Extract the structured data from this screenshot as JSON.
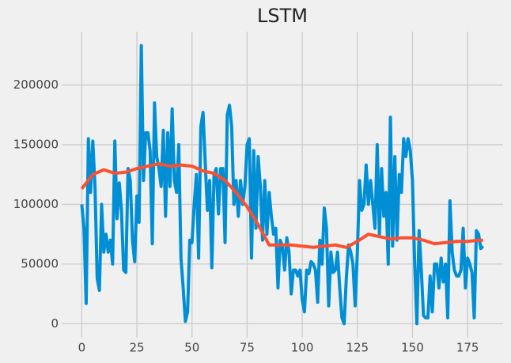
{
  "chart_data": {
    "type": "line",
    "title": "LSTM",
    "xlim": [
      -9.1,
      191.1
    ],
    "ylim": [
      -11650,
      244650
    ],
    "xticks": [
      0,
      25,
      50,
      75,
      100,
      125,
      150,
      175
    ],
    "yticks": [
      0,
      50000,
      100000,
      150000,
      200000
    ],
    "grid": true,
    "series": [
      {
        "color": "#008fd5",
        "x": [
          0,
          1,
          2,
          3,
          4,
          5,
          6,
          7,
          8,
          9,
          10,
          11,
          12,
          13,
          14,
          15,
          16,
          17,
          18,
          19,
          20,
          21,
          22,
          23,
          24,
          25,
          26,
          27,
          28,
          29,
          30,
          31,
          32,
          33,
          34,
          35,
          36,
          37,
          38,
          39,
          40,
          41,
          42,
          43,
          44,
          45,
          46,
          47,
          48,
          49,
          50,
          51,
          52,
          53,
          54,
          55,
          56,
          57,
          58,
          59,
          60,
          61,
          62,
          63,
          64,
          65,
          66,
          67,
          68,
          69,
          70,
          71,
          72,
          73,
          74,
          75,
          76,
          77,
          78,
          79,
          80,
          81,
          82,
          83,
          84,
          85,
          86,
          87,
          88,
          89,
          90,
          91,
          92,
          93,
          94,
          95,
          96,
          97,
          98,
          99,
          100,
          101,
          102,
          103,
          104,
          105,
          106,
          107,
          108,
          109,
          110,
          111,
          112,
          113,
          114,
          115,
          116,
          117,
          118,
          119,
          120,
          121,
          122,
          123,
          124,
          125,
          126,
          127,
          128,
          129,
          130,
          131,
          132,
          133,
          134,
          135,
          136,
          137,
          138,
          139,
          140,
          141,
          142,
          143,
          144,
          145,
          146,
          147,
          148,
          149,
          150,
          151,
          152,
          153,
          154,
          155,
          156,
          157,
          158,
          159,
          160,
          161,
          162,
          163,
          164,
          165,
          166,
          167,
          168,
          169,
          170,
          171,
          172,
          173,
          174,
          175,
          176,
          177,
          178,
          179,
          180,
          181,
          182
        ],
        "values": [
          100000,
          80000,
          17000,
          155000,
          110000,
          153000,
          115000,
          38000,
          28000,
          100000,
          60000,
          75000,
          60000,
          70000,
          50000,
          153000,
          88000,
          118000,
          95000,
          45000,
          43000,
          130000,
          120000,
          70000,
          52000,
          107000,
          85000,
          233000,
          120000,
          160000,
          160000,
          145000,
          67000,
          185000,
          140000,
          130000,
          115000,
          162000,
          90000,
          160000,
          115000,
          180000,
          120000,
          110000,
          150000,
          55000,
          30000,
          2000,
          10000,
          70000,
          68000,
          100000,
          125000,
          55000,
          165000,
          177000,
          135000,
          95000,
          120000,
          47000,
          125000,
          130000,
          92000,
          130000,
          130000,
          68000,
          175000,
          183000,
          165000,
          100000,
          120000,
          90000,
          120000,
          100000,
          115000,
          150000,
          155000,
          55000,
          145000,
          80000,
          140000,
          115000,
          70000,
          120000,
          75000,
          110000,
          90000,
          75000,
          80000,
          30000,
          70000,
          65000,
          45000,
          72000,
          60000,
          25000,
          45000,
          45000,
          40000,
          45000,
          20000,
          10000,
          45000,
          42000,
          52000,
          50000,
          45000,
          18000,
          70000,
          50000,
          97000,
          80000,
          15000,
          60000,
          43000,
          45000,
          60000,
          30000,
          5000,
          0,
          38000,
          66000,
          60000,
          50000,
          15000,
          60000,
          120000,
          95000,
          100000,
          133000,
          100000,
          120000,
          100000,
          80000,
          150000,
          75000,
          130000,
          90000,
          110000,
          50000,
          173000,
          65000,
          140000,
          70000,
          125000,
          110000,
          155000,
          140000,
          155000,
          145000,
          120000,
          50000,
          0,
          78000,
          45000,
          7000,
          5000,
          5000,
          40000,
          10000,
          50000,
          50000,
          30000,
          55000,
          35000,
          50000,
          5000,
          103000,
          60000,
          45000,
          40000,
          40000,
          45000,
          80000,
          30000,
          55000,
          50000,
          43000,
          5000,
          78000,
          75000,
          63000,
          65000
        ]
      },
      {
        "color": "#fc4f30",
        "x": [
          0,
          5,
          10,
          15,
          20,
          25,
          30,
          35,
          40,
          45,
          50,
          55,
          60,
          65,
          70,
          75,
          80,
          85,
          90,
          95,
          100,
          105,
          110,
          115,
          120,
          125,
          130,
          135,
          140,
          145,
          150,
          155,
          160,
          165,
          170,
          175,
          180,
          182
        ],
        "values": [
          113000,
          125000,
          129000,
          126000,
          127000,
          130000,
          132000,
          134000,
          132000,
          133000,
          132000,
          128000,
          126000,
          120000,
          110000,
          98000,
          83000,
          66000,
          66000,
          66000,
          65000,
          64000,
          65000,
          66000,
          64000,
          69000,
          75000,
          73000,
          71000,
          72000,
          72000,
          70000,
          67000,
          68000,
          69000,
          69000,
          70000,
          70000
        ]
      }
    ]
  }
}
